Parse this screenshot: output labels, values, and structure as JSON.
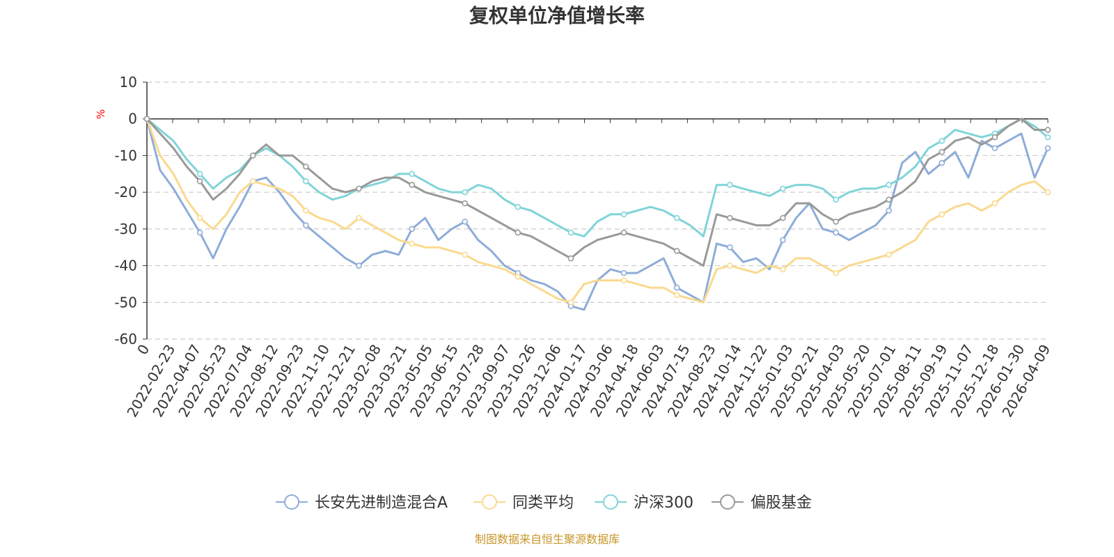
{
  "chart_data": {
    "type": "line",
    "title": "复权单位净值增长率",
    "ylabel": "%",
    "xlabel": "",
    "ylim": [
      -60,
      10
    ],
    "yticks": [
      10,
      0,
      -10,
      -20,
      -30,
      -40,
      -50,
      -60
    ],
    "x_tick_labels": [
      "0",
      "2022-02-23",
      "2022-04-07",
      "2022-05-23",
      "2022-07-04",
      "2022-08-12",
      "2022-09-23",
      "2022-11-10",
      "2022-12-21",
      "2023-02-08",
      "2023-03-21",
      "2023-05-05",
      "2023-06-15",
      "2023-07-28",
      "2023-09-07",
      "2023-10-26",
      "2023-12-06",
      "2024-01-17",
      "2024-03-06",
      "2024-04-18",
      "2024-06-03",
      "2024-07-15",
      "2024-08-23",
      "2024-10-14",
      "2024-11-22",
      "2025-01-03",
      "2025-02-21",
      "2025-04-03",
      "2025-05-20",
      "2025-07-01",
      "2025-08-11",
      "2025-09-19",
      "2025-11-07",
      "2025-12-18",
      "2026-01-30",
      "2026-04-09"
    ],
    "grid": "horizontal-dashed",
    "legend_position": "bottom",
    "series": [
      {
        "name": "长安先进制造混合A",
        "color": "#8eacd8",
        "values": [
          0,
          -14,
          -19,
          -25,
          -31,
          -38,
          -30,
          -24,
          -17,
          -16,
          -20,
          -25,
          -29,
          -32,
          -35,
          -38,
          -40,
          -37,
          -36,
          -37,
          -30,
          -27,
          -33,
          -30,
          -28,
          -33,
          -36,
          -40,
          -42,
          -44,
          -45,
          -47,
          -51,
          -52,
          -44,
          -41,
          -42,
          -42,
          -40,
          -38,
          -46,
          -48,
          -50,
          -34,
          -35,
          -39,
          -38,
          -41,
          -33,
          -27,
          -23,
          -30,
          -31,
          -33,
          -31,
          -29,
          -25,
          -12,
          -9,
          -15,
          -12,
          -9,
          -16,
          -6,
          -8,
          -6,
          -4,
          -16,
          -8
        ]
      },
      {
        "name": "同类平均",
        "color": "#fad98e",
        "values": [
          0,
          -10,
          -15,
          -22,
          -27,
          -30,
          -26,
          -20,
          -17,
          -18,
          -19,
          -21,
          -25,
          -27,
          -28,
          -30,
          -27,
          -29,
          -31,
          -33,
          -34,
          -35,
          -35,
          -36,
          -37,
          -39,
          -40,
          -41,
          -43,
          -45,
          -47,
          -49,
          -50,
          -45,
          -44,
          -44,
          -44,
          -45,
          -46,
          -46,
          -48,
          -49,
          -50,
          -41,
          -40,
          -41,
          -42,
          -40,
          -41,
          -38,
          -38,
          -40,
          -42,
          -40,
          -39,
          -38,
          -37,
          -35,
          -33,
          -28,
          -26,
          -24,
          -23,
          -25,
          -23,
          -20,
          -18,
          -17,
          -20
        ]
      },
      {
        "name": "沪深300",
        "color": "#80d4d8",
        "values": [
          0,
          -3,
          -6,
          -11,
          -15,
          -19,
          -16,
          -14,
          -10,
          -8,
          -10,
          -13,
          -17,
          -20,
          -22,
          -21,
          -19,
          -18,
          -17,
          -15,
          -15,
          -17,
          -19,
          -20,
          -20,
          -18,
          -19,
          -22,
          -24,
          -25,
          -27,
          -29,
          -31,
          -32,
          -28,
          -26,
          -26,
          -25,
          -24,
          -25,
          -27,
          -29,
          -32,
          -18,
          -18,
          -19,
          -20,
          -21,
          -19,
          -18,
          -18,
          -19,
          -22,
          -20,
          -19,
          -19,
          -18,
          -16,
          -13,
          -8,
          -6,
          -3,
          -4,
          -5,
          -4,
          -2,
          0,
          -2,
          -5
        ]
      },
      {
        "name": "偏股基金",
        "color": "#999999",
        "values": [
          0,
          -4,
          -8,
          -13,
          -17,
          -22,
          -19,
          -15,
          -10,
          -7,
          -10,
          -10,
          -13,
          -16,
          -19,
          -20,
          -19,
          -17,
          -16,
          -16,
          -18,
          -20,
          -21,
          -22,
          -23,
          -25,
          -27,
          -29,
          -31,
          -32,
          -34,
          -36,
          -38,
          -35,
          -33,
          -32,
          -31,
          -32,
          -33,
          -34,
          -36,
          -38,
          -40,
          -26,
          -27,
          -28,
          -29,
          -29,
          -27,
          -23,
          -23,
          -26,
          -28,
          -26,
          -25,
          -24,
          -22,
          -20,
          -17,
          -11,
          -9,
          -6,
          -5,
          -7,
          -5,
          -2,
          0,
          -3,
          -3
        ]
      }
    ]
  },
  "source": "制图数据来自恒生聚源数据库"
}
